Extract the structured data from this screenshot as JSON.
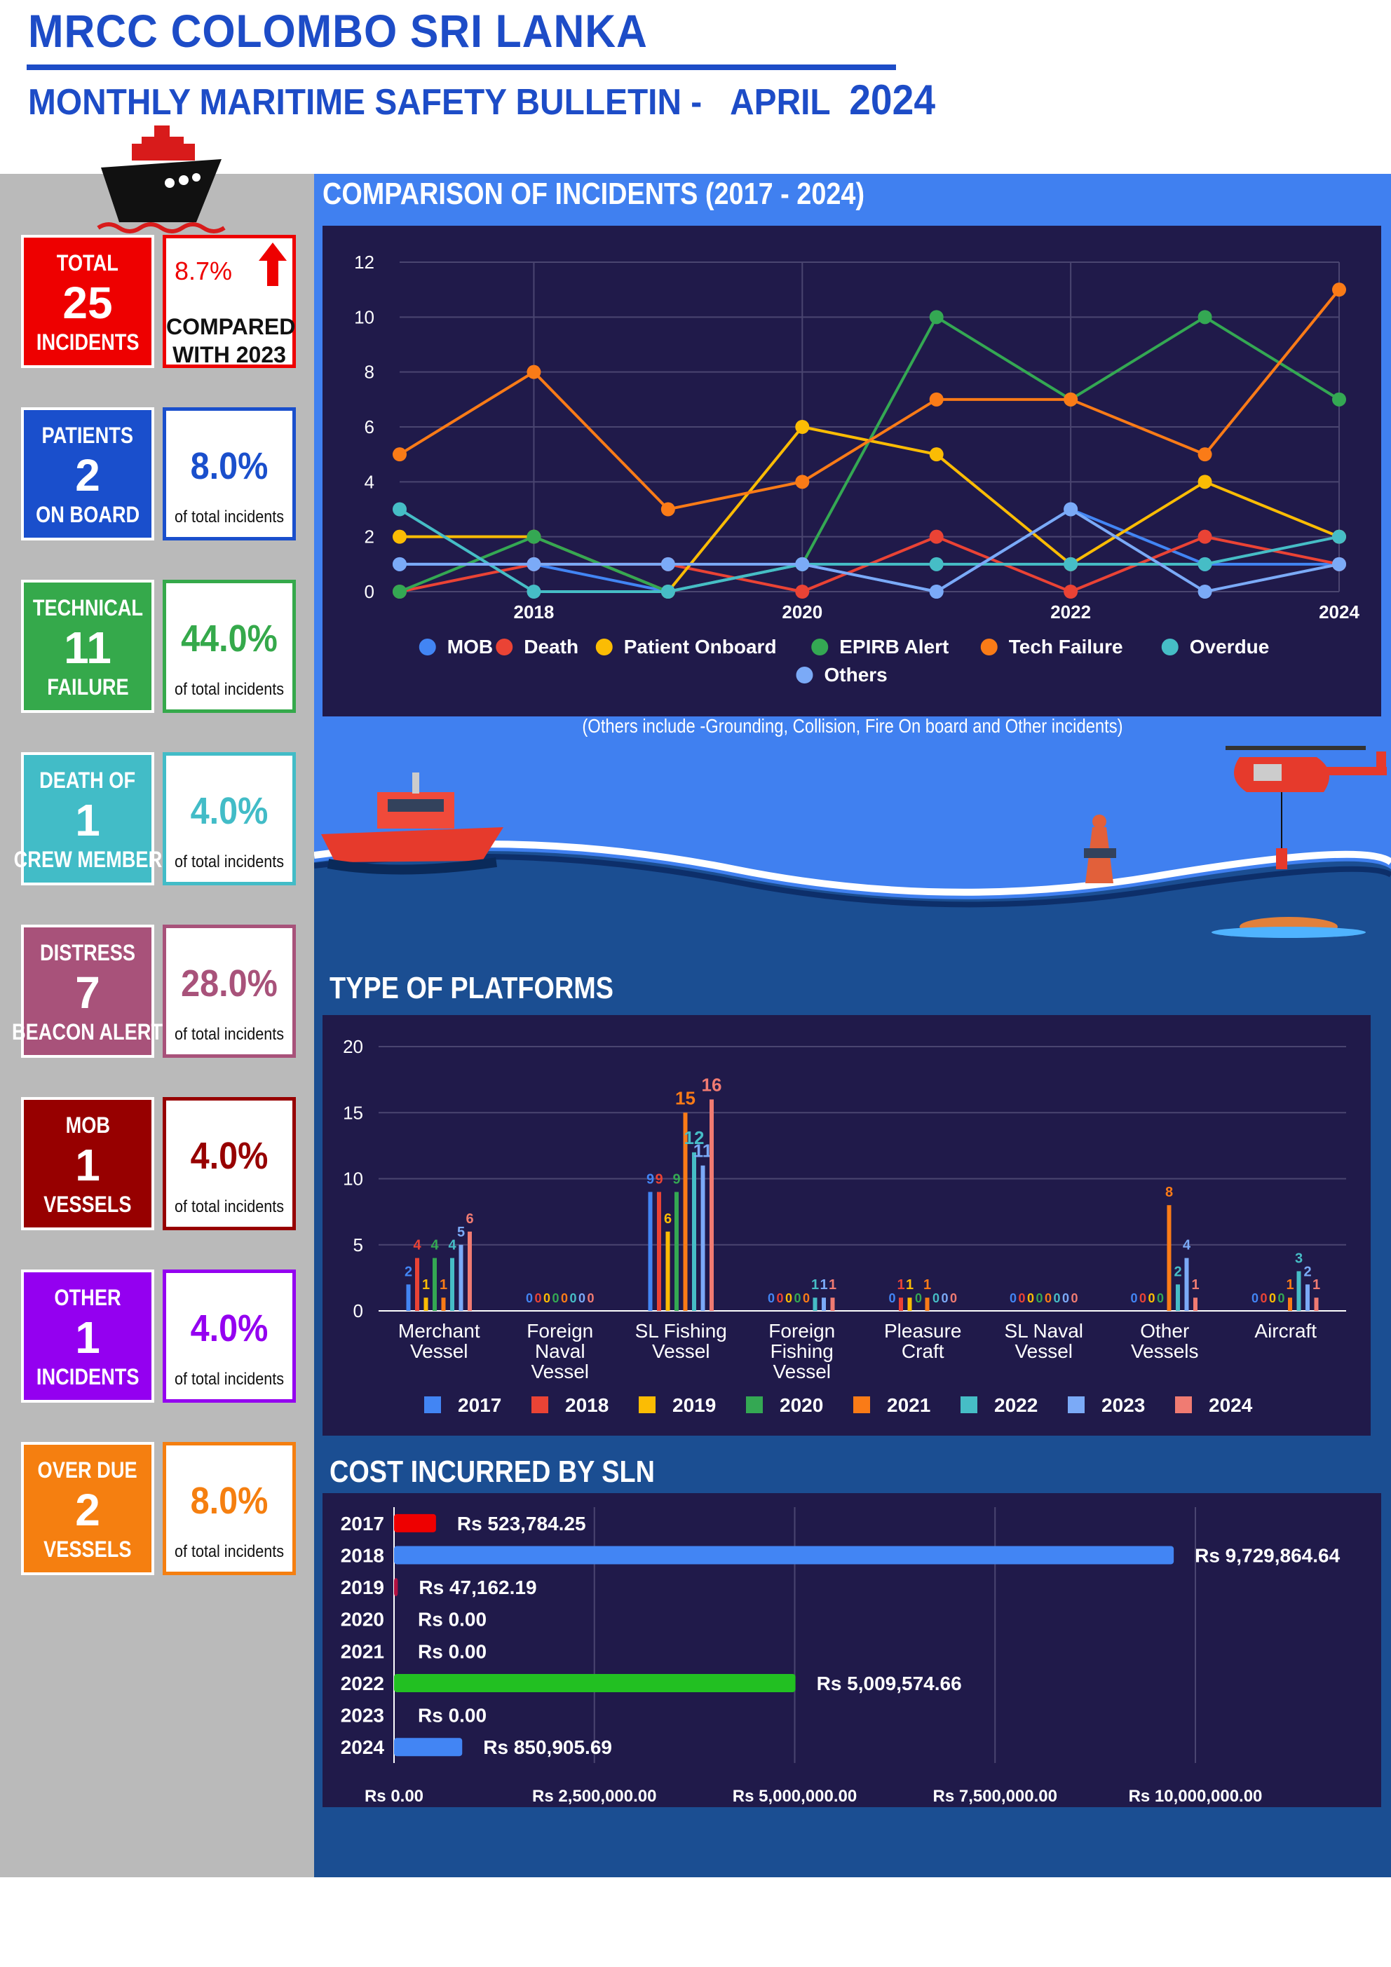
{
  "header": {
    "title": "MRCC COLOMBO SRI LANKA",
    "subtitle": "MONTHLY MARITIME SAFETY BULLETIN -",
    "month": "APRIL",
    "year": "2024"
  },
  "stats": [
    {
      "line1": "TOTAL",
      "value": "25",
      "line3": "INCIDENTS",
      "pct": "8.7%",
      "note1": "COMPARED",
      "note2": "WITH 2023",
      "color": "#ee0000",
      "kind": "total"
    },
    {
      "line1": "PATIENTS",
      "value": "2",
      "line3": "ON BOARD",
      "pct": "8.0%",
      "note": "of total incidents",
      "color": "#1a4fcc"
    },
    {
      "line1": "TECHNICAL",
      "value": "11",
      "line3": "FAILURE",
      "pct": "44.0%",
      "note": "of total incidents",
      "color": "#35a94b"
    },
    {
      "line1": "DEATH OF",
      "value": "1",
      "line3": "CREW MEMBER",
      "pct": "4.0%",
      "note": "of total incidents",
      "color": "#42bcc7"
    },
    {
      "line1": "DISTRESS",
      "value": "7",
      "line3": "BEACON ALERT",
      "pct": "28.0%",
      "note": "of total incidents",
      "color": "#a8527a"
    },
    {
      "line1": "MOB",
      "value": "1",
      "line3": "VESSELS",
      "pct": "4.0%",
      "note": "of total incidents",
      "color": "#970000"
    },
    {
      "line1": "OTHER",
      "value": "1",
      "line3": "INCIDENTS",
      "pct": "4.0%",
      "note": "of total incidents",
      "color": "#9400f0"
    },
    {
      "line1": "OVER DUE",
      "value": "2",
      "line3": "VESSELS",
      "pct": "8.0%",
      "note": "of total incidents",
      "color": "#f57f10"
    }
  ],
  "sections": {
    "comparison_title": "COMPARISON OF INCIDENTS (2017 - 2024)",
    "comparison_note": "(Others include -Grounding, Collision, Fire On board and Other incidents)",
    "platforms_title": "TYPE OF PLATFORMS",
    "cost_title": "COST INCURRED BY SLN"
  },
  "chart_data": [
    {
      "type": "line",
      "x": [
        2017,
        2018,
        2019,
        2020,
        2021,
        2022,
        2023,
        2024
      ],
      "xticks": [
        "2018",
        "2020",
        "2022",
        "2024"
      ],
      "ylim": [
        0,
        12
      ],
      "yticks": [
        0,
        2,
        4,
        6,
        8,
        10,
        12
      ],
      "grid": true,
      "legend_position": "bottom",
      "series": [
        {
          "name": "MOB",
          "color": "#4285f4",
          "values": [
            1,
            1,
            0,
            1,
            0,
            3,
            1,
            1
          ]
        },
        {
          "name": "Death",
          "color": "#ea4335",
          "values": [
            0,
            1,
            1,
            0,
            2,
            0,
            2,
            1
          ]
        },
        {
          "name": "Patient Onboard",
          "color": "#fbbc04",
          "values": [
            2,
            2,
            0,
            6,
            5,
            1,
            4,
            2
          ]
        },
        {
          "name": "EPIRB Alert",
          "color": "#34a853",
          "values": [
            0,
            2,
            0,
            1,
            10,
            7,
            10,
            7
          ]
        },
        {
          "name": "Tech Failure",
          "color": "#fa7b17",
          "values": [
            5,
            8,
            3,
            4,
            7,
            7,
            5,
            11
          ]
        },
        {
          "name": "Overdue",
          "color": "#46bdc6",
          "values": [
            3,
            0,
            0,
            1,
            1,
            1,
            1,
            2
          ]
        },
        {
          "name": "Others",
          "color": "#7baaf7",
          "values": [
            1,
            1,
            1,
            1,
            0,
            3,
            0,
            1
          ]
        }
      ]
    },
    {
      "type": "bar",
      "categories": [
        [
          "Merchant",
          "Vessel"
        ],
        [
          "Foreign",
          "Naval",
          "Vessel"
        ],
        [
          "SL Fishing",
          "Vessel"
        ],
        [
          "Foreign",
          "Fishing",
          "Vessel"
        ],
        [
          "Pleasure",
          "Craft"
        ],
        [
          "SL Naval",
          "Vessel"
        ],
        [
          "Other",
          "Vessels"
        ],
        [
          "Aircraft"
        ]
      ],
      "ylim": [
        0,
        20
      ],
      "yticks": [
        0,
        5,
        10,
        15,
        20
      ],
      "legend_position": "bottom",
      "series": [
        {
          "name": "2017",
          "color": "#4285f4",
          "values": [
            2,
            0,
            9,
            0,
            0,
            0,
            0,
            0
          ]
        },
        {
          "name": "2018",
          "color": "#ea4335",
          "values": [
            4,
            0,
            9,
            0,
            1,
            0,
            0,
            0
          ]
        },
        {
          "name": "2019",
          "color": "#fbbc04",
          "values": [
            1,
            0,
            6,
            0,
            1,
            0,
            0,
            0
          ]
        },
        {
          "name": "2020",
          "color": "#34a853",
          "values": [
            4,
            0,
            9,
            0,
            0,
            0,
            0,
            0
          ]
        },
        {
          "name": "2021",
          "color": "#fa7b17",
          "values": [
            1,
            0,
            15,
            0,
            1,
            0,
            8,
            1
          ]
        },
        {
          "name": "2022",
          "color": "#46bdc6",
          "values": [
            4,
            0,
            12,
            1,
            0,
            0,
            2,
            3
          ]
        },
        {
          "name": "2023",
          "color": "#7baaf7",
          "values": [
            5,
            0,
            11,
            1,
            0,
            0,
            4,
            2
          ]
        },
        {
          "name": "2024",
          "color": "#f07b72",
          "values": [
            6,
            0,
            16,
            1,
            0,
            0,
            1,
            1
          ]
        }
      ]
    },
    {
      "type": "bar",
      "orientation": "horizontal",
      "categories": [
        "2017",
        "2018",
        "2019",
        "2020",
        "2021",
        "2022",
        "2023",
        "2024"
      ],
      "values": [
        523784.25,
        9729864.64,
        47162.19,
        0,
        0,
        5009574.66,
        0,
        850905.69
      ],
      "labels": [
        "Rs 523,784.25",
        "Rs 9,729,864.64",
        "Rs 47,162.19",
        "Rs 0.00",
        "Rs 0.00",
        "Rs 5,009,574.66",
        "Rs 0.00",
        "Rs 850,905.69"
      ],
      "colors": [
        "#ee0000",
        "#4285f4",
        "#b01040",
        "#4285f4",
        "#4285f4",
        "#22c022",
        "#4285f4",
        "#4285f4"
      ],
      "xlim": [
        0,
        10000000
      ],
      "xticks": [
        0,
        2500000,
        5000000,
        7500000,
        10000000
      ],
      "xtick_labels": [
        "Rs 0.00",
        "Rs 2,500,000.00",
        "Rs 5,000,000.00",
        "Rs 7,500,000.00",
        "Rs 10,000,000.00"
      ],
      "grid": true
    }
  ]
}
